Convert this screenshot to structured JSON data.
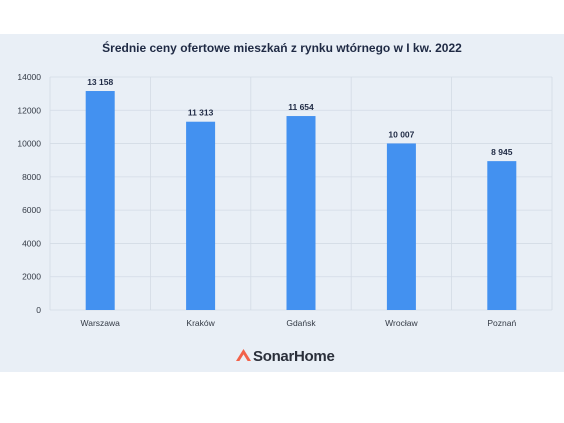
{
  "chart_data": {
    "type": "bar",
    "title": "Średnie ceny ofertowe mieszkań z rynku wtórnego w I kw. 2022",
    "categories": [
      "Warszawa",
      "Kraków",
      "Gdańsk",
      "Wrocław",
      "Poznań"
    ],
    "values": [
      13158,
      11313,
      11654,
      10007,
      8945
    ],
    "value_labels": [
      "13 158",
      "11 313",
      "11 654",
      "10 007",
      "8 945"
    ],
    "y_ticks": [
      0,
      2000,
      4000,
      6000,
      8000,
      10000,
      12000,
      14000
    ],
    "ylim": [
      0,
      14000
    ],
    "grid": true,
    "bar_color": "#4391f0"
  },
  "brand": {
    "name": "SonarHome",
    "logo_color": "#f2624a"
  }
}
